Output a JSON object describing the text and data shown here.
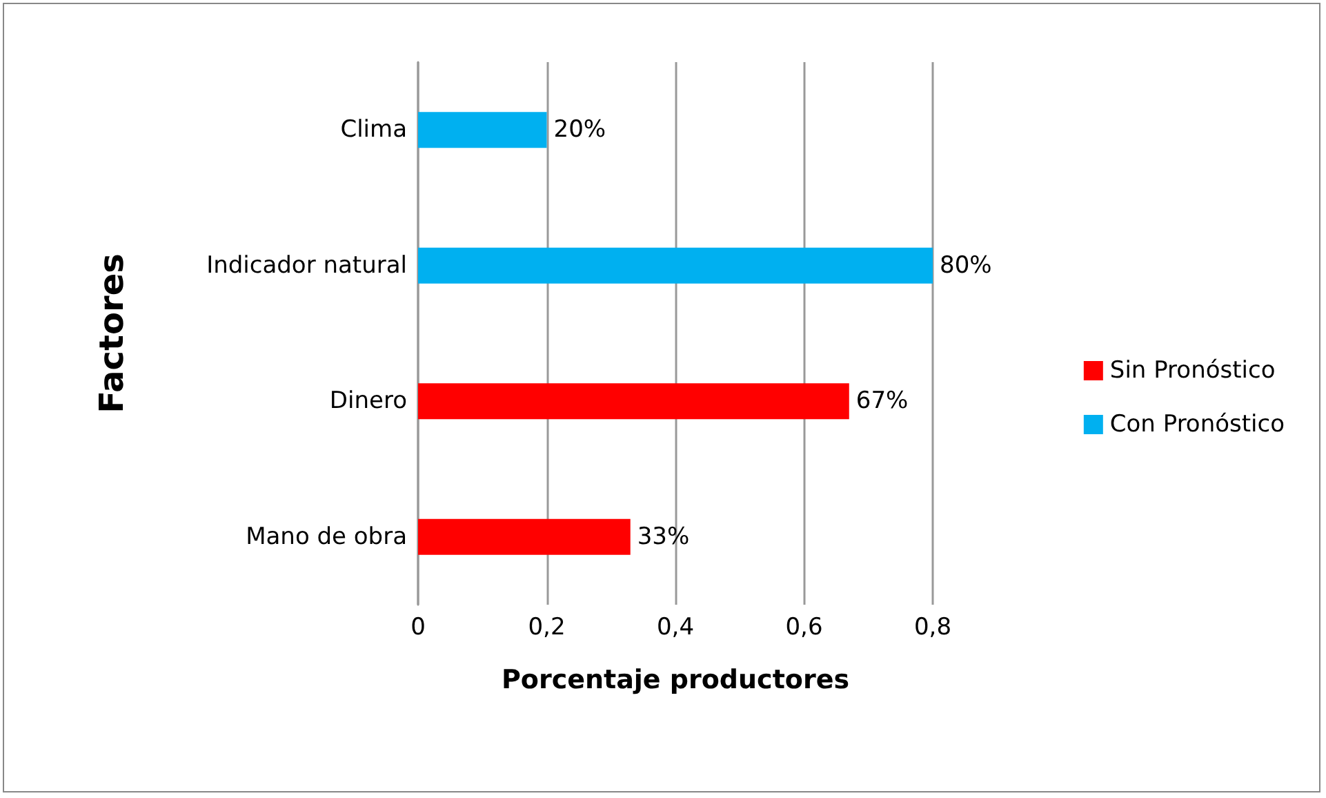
{
  "chart_data": {
    "type": "bar",
    "orientation": "horizontal",
    "xlabel": "Porcentaje productores",
    "ylabel": "Factores",
    "categories": [
      "Clima",
      "Indicador natural",
      "Dinero",
      "Mano de obra"
    ],
    "series": [
      {
        "name": "Sin Pronóstico",
        "color": "#ff0000",
        "values": [
          null,
          null,
          0.67,
          0.33
        ],
        "value_labels": [
          null,
          null,
          "67%",
          "33%"
        ]
      },
      {
        "name": "Con Pronóstico",
        "color": "#00b0f0",
        "values": [
          0.2,
          0.8,
          null,
          null
        ],
        "value_labels": [
          "20%",
          "80%",
          null,
          null
        ]
      }
    ],
    "xlim": [
      0,
      0.8
    ],
    "xticks": [
      0,
      {
        "value": 0.2,
        "label": "0,2"
      },
      {
        "value": 0.4,
        "label": "0,4"
      },
      {
        "value": 0.6,
        "label": "0,6"
      },
      {
        "value": 0.8,
        "label": "0,8"
      }
    ],
    "grid": "x",
    "legend": "right"
  }
}
